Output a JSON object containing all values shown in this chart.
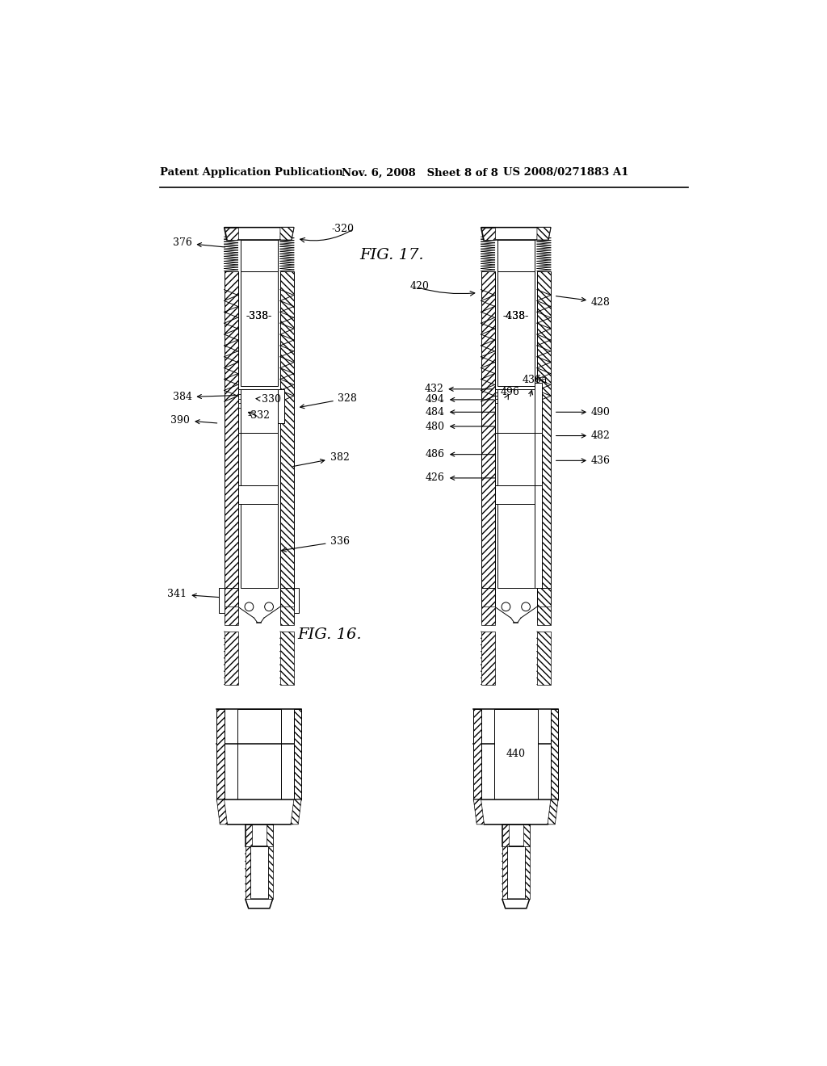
{
  "bg_color": "#ffffff",
  "header_left": "Patent Application Publication",
  "header_mid": "Nov. 6, 2008   Sheet 8 of 8",
  "header_right": "US 2008/0271883 A1",
  "fig16_label": "FIG. 16.",
  "fig17_label": "FIG. 17."
}
